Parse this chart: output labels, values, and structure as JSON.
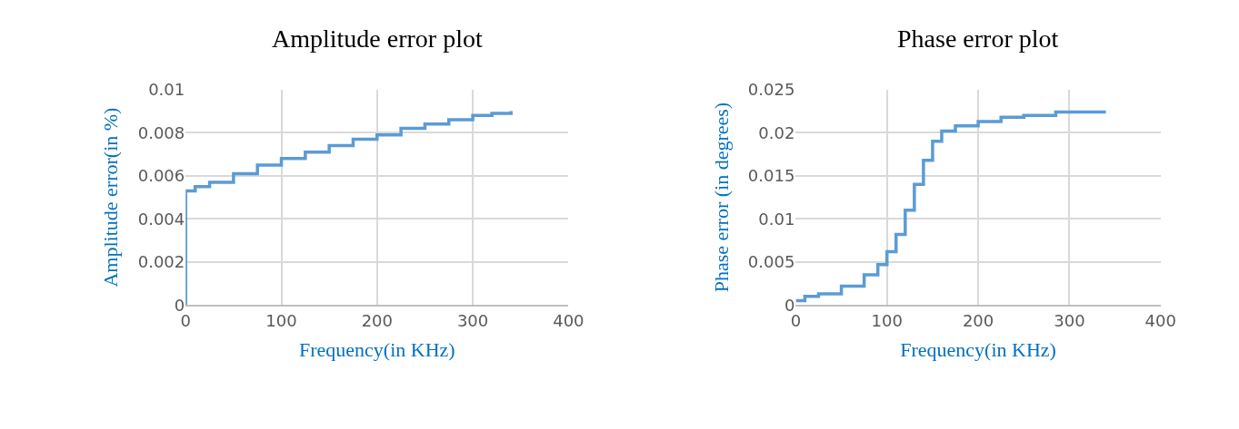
{
  "chart_data": [
    {
      "type": "step",
      "title": "Amplitude error plot",
      "xlabel": "Frequency(in KHz)",
      "ylabel": "Amplitude error(in %)",
      "grid": true,
      "x": [
        0,
        0,
        10,
        25,
        50,
        75,
        100,
        125,
        150,
        175,
        200,
        225,
        250,
        275,
        300,
        320,
        340
      ],
      "series": [
        {
          "color": "#5b9bd5",
          "values": [
            0,
            0.0053,
            0.0055,
            0.0057,
            0.0061,
            0.0065,
            0.0068,
            0.0071,
            0.0074,
            0.0077,
            0.0079,
            0.0082,
            0.0084,
            0.0086,
            0.0088,
            0.0089,
            0.009
          ]
        }
      ],
      "xlim": [
        0,
        400
      ],
      "xticks": [
        0,
        100,
        200,
        300,
        400
      ],
      "ylim": [
        0,
        0.01
      ],
      "yticks": [
        0,
        0.002,
        0.004,
        0.006,
        0.008,
        0.01
      ]
    },
    {
      "type": "step",
      "title": "Phase error plot",
      "xlabel": "Frequency(in KHz)",
      "ylabel": "Phase error (in degrees)",
      "grid": true,
      "x": [
        0,
        10,
        25,
        50,
        75,
        90,
        100,
        110,
        120,
        130,
        140,
        150,
        160,
        175,
        200,
        225,
        250,
        285,
        340
      ],
      "series": [
        {
          "color": "#5b9bd5",
          "values": [
            0.0005,
            0.001,
            0.0013,
            0.0022,
            0.0035,
            0.0047,
            0.0062,
            0.0082,
            0.011,
            0.014,
            0.0168,
            0.019,
            0.0202,
            0.0208,
            0.0213,
            0.0218,
            0.022,
            0.0224,
            0.0224
          ]
        }
      ],
      "xlim": [
        0,
        400
      ],
      "xticks": [
        0,
        100,
        200,
        300,
        400
      ],
      "ylim": [
        0,
        0.025
      ],
      "yticks": [
        0,
        0.005,
        0.01,
        0.015,
        0.02,
        0.025
      ]
    }
  ]
}
